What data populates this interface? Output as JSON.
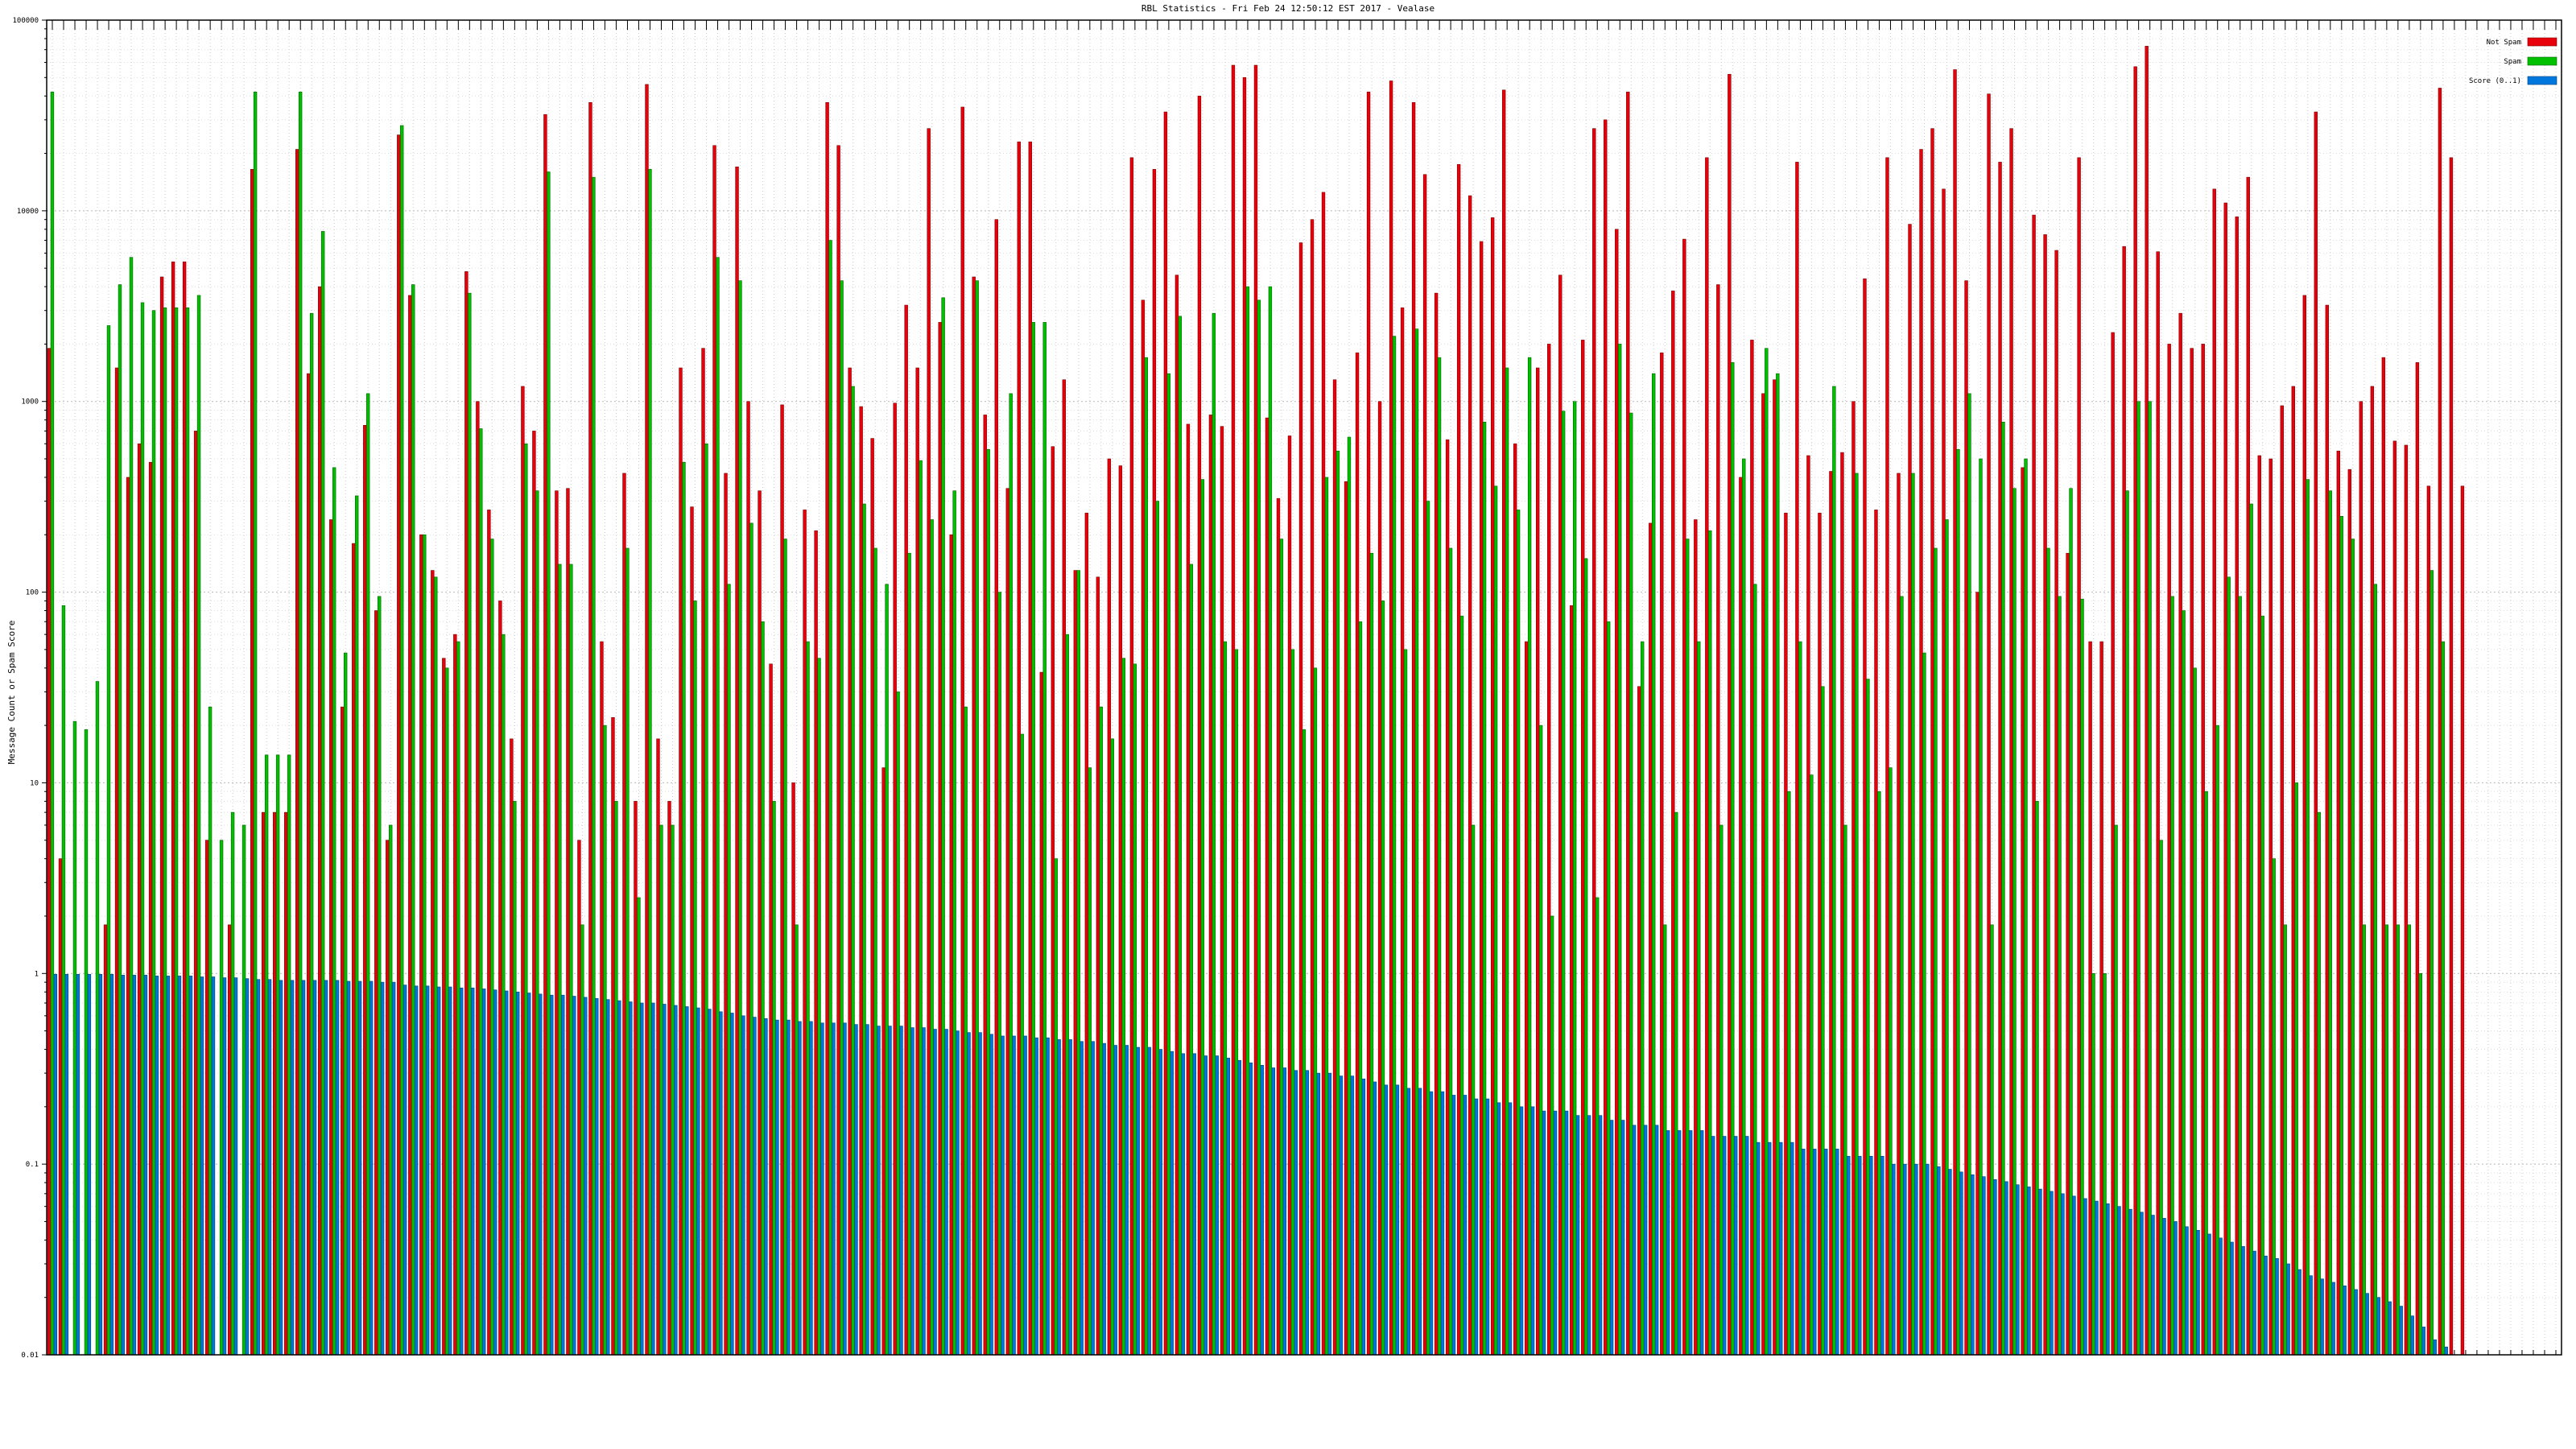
{
  "chart_data": {
    "type": "bar",
    "title": "RBL Statistics - Fri Feb 24 12:50:12 EST 2017 - Vealase",
    "xlabel": "",
    "ylabel": "Message Count or Spam Score",
    "yscale": "log",
    "ylim": [
      0.01,
      100000
    ],
    "y_ticks": [
      "0.01",
      "0.1",
      "1",
      "10",
      "100",
      "1000",
      "10000",
      "100000"
    ],
    "grid": true,
    "legend_position": "top-right",
    "categories_note": "x-axis tick labels are illegible in the screenshot",
    "colors": {
      "not_spam": "#e8000b",
      "spam": "#00c000",
      "score": "#0077dd"
    },
    "series": [
      {
        "name": "Not Spam",
        "values": [
          1900,
          4,
          null,
          null,
          null,
          1.8,
          1500,
          400,
          600,
          480,
          4500,
          5400,
          5400,
          700,
          5,
          null,
          1.8,
          null,
          16500,
          7,
          7,
          7,
          21000,
          1400,
          4000,
          240,
          25,
          180,
          750,
          80,
          5,
          25000,
          3600,
          200,
          130,
          45,
          60,
          4800,
          1000,
          270,
          90,
          17,
          1200,
          700,
          32000,
          340,
          350,
          5,
          37000,
          55,
          22,
          420,
          8,
          46000,
          17,
          8,
          1500,
          280,
          1900,
          22000,
          420,
          17000,
          1000,
          340,
          42,
          960,
          10,
          270,
          210,
          37000,
          22000,
          1500,
          940,
          640,
          12,
          980,
          3200,
          1500,
          27000,
          2600,
          200,
          35000,
          4500,
          850,
          9000,
          350,
          23000,
          23000,
          38,
          580,
          1300,
          130,
          260,
          120,
          500,
          460,
          19000,
          3400,
          16500,
          33000,
          4600,
          760,
          40000,
          850,
          740,
          58000,
          50000,
          58000,
          820,
          310,
          660,
          6800,
          9000,
          12500,
          1300,
          380,
          1800,
          42000,
          1000,
          48000,
          3100,
          37000,
          15500,
          3700,
          630,
          17500,
          12000,
          6900,
          9200,
          43000,
          600,
          55,
          1500,
          2000,
          4600,
          85,
          2100,
          27000,
          30000,
          8000,
          42000,
          32,
          230,
          1800,
          3800,
          7100,
          240,
          19000,
          4100,
          52000,
          400,
          2100,
          1100,
          1300,
          260,
          18000,
          520,
          260,
          430,
          540,
          1000,
          4400,
          270,
          19000,
          420,
          8500,
          21000,
          27000,
          13000,
          55000,
          4300,
          100,
          41000,
          18000,
          27000,
          450,
          9500,
          7500,
          6200,
          160,
          19000,
          55,
          55,
          2300,
          6500,
          57000,
          73000,
          6100,
          2000,
          2900,
          1900,
          2000,
          13000,
          11000,
          9300,
          15000,
          520,
          500,
          950,
          1200,
          3600,
          33000,
          3200,
          550,
          440,
          1000,
          1200,
          1700,
          620,
          590,
          1600,
          360,
          44000,
          19000,
          360
        ]
      },
      {
        "name": "Spam",
        "values": [
          42000,
          85,
          21,
          19,
          34,
          2500,
          4100,
          5700,
          3300,
          3000,
          3100,
          3100,
          3100,
          3600,
          25,
          5,
          7,
          6,
          42000,
          14,
          14,
          14,
          42000,
          2900,
          7800,
          450,
          48,
          320,
          1100,
          95,
          6,
          28000,
          4100,
          200,
          120,
          40,
          55,
          3700,
          720,
          190,
          60,
          8,
          600,
          340,
          16000,
          140,
          140,
          1.8,
          15000,
          20,
          8,
          170,
          2.5,
          16500,
          6,
          6,
          480,
          90,
          600,
          5700,
          110,
          4300,
          230,
          70,
          8,
          190,
          1.8,
          55,
          45,
          7000,
          4300,
          1200,
          290,
          170,
          110,
          30,
          160,
          490,
          240,
          3500,
          340,
          25,
          4300,
          560,
          100,
          1100,
          18,
          2600,
          2600,
          4,
          60,
          130,
          12,
          25,
          17,
          45,
          42,
          1700,
          300,
          1400,
          2800,
          140,
          390,
          2900,
          55,
          50,
          4000,
          3400,
          4000,
          190,
          50,
          19,
          40,
          400,
          550,
          650,
          70,
          160,
          90,
          2200,
          50,
          2400,
          300,
          1700,
          170,
          75,
          6,
          780,
          360,
          1500,
          270,
          1700,
          20,
          2,
          890,
          1000,
          150,
          2.5,
          70,
          2000,
          870,
          55,
          1400,
          1.8,
          7,
          190,
          55,
          210,
          6,
          1600,
          500,
          110,
          1900,
          1400,
          9,
          55,
          11,
          32,
          1200,
          6,
          420,
          35,
          9,
          12,
          95,
          420,
          48,
          170,
          240,
          560,
          1100,
          500,
          1.8,
          780,
          350,
          500,
          8,
          170,
          95,
          350,
          92,
          1,
          1,
          6,
          340,
          1000,
          1000,
          5,
          95,
          80,
          40,
          9,
          20,
          120,
          95,
          290,
          75,
          4,
          1.8,
          10,
          390,
          7,
          340,
          250,
          190,
          1.8,
          110,
          1.8,
          1.8,
          1.8,
          1,
          130,
          55
        ]
      },
      {
        "name": "Score (0..1)",
        "values": [
          0.99,
          0.99,
          0.99,
          0.99,
          0.99,
          0.99,
          0.98,
          0.98,
          0.98,
          0.97,
          0.97,
          0.97,
          0.97,
          0.96,
          0.96,
          0.95,
          0.95,
          0.94,
          0.93,
          0.93,
          0.92,
          0.92,
          0.92,
          0.92,
          0.92,
          0.92,
          0.91,
          0.91,
          0.91,
          0.9,
          0.9,
          0.87,
          0.86,
          0.86,
          0.85,
          0.85,
          0.84,
          0.84,
          0.83,
          0.82,
          0.81,
          0.8,
          0.79,
          0.78,
          0.77,
          0.77,
          0.76,
          0.75,
          0.74,
          0.73,
          0.72,
          0.71,
          0.7,
          0.7,
          0.69,
          0.68,
          0.67,
          0.66,
          0.65,
          0.63,
          0.62,
          0.6,
          0.59,
          0.58,
          0.57,
          0.57,
          0.56,
          0.56,
          0.55,
          0.55,
          0.55,
          0.54,
          0.54,
          0.53,
          0.53,
          0.53,
          0.52,
          0.52,
          0.51,
          0.51,
          0.5,
          0.49,
          0.49,
          0.48,
          0.47,
          0.47,
          0.47,
          0.46,
          0.46,
          0.45,
          0.45,
          0.44,
          0.44,
          0.43,
          0.42,
          0.42,
          0.41,
          0.41,
          0.4,
          0.39,
          0.38,
          0.38,
          0.37,
          0.37,
          0.36,
          0.35,
          0.34,
          0.33,
          0.32,
          0.32,
          0.31,
          0.31,
          0.3,
          0.3,
          0.29,
          0.29,
          0.28,
          0.27,
          0.26,
          0.26,
          0.25,
          0.25,
          0.24,
          0.24,
          0.23,
          0.23,
          0.22,
          0.22,
          0.21,
          0.21,
          0.2,
          0.2,
          0.19,
          0.19,
          0.19,
          0.18,
          0.18,
          0.18,
          0.17,
          0.17,
          0.16,
          0.16,
          0.16,
          0.15,
          0.15,
          0.15,
          0.15,
          0.14,
          0.14,
          0.14,
          0.14,
          0.13,
          0.13,
          0.13,
          0.13,
          0.12,
          0.12,
          0.12,
          0.12,
          0.11,
          0.11,
          0.11,
          0.11,
          0.1,
          0.1,
          0.1,
          0.1,
          0.097,
          0.094,
          0.091,
          0.088,
          0.086,
          0.083,
          0.081,
          0.078,
          0.076,
          0.074,
          0.072,
          0.07,
          0.068,
          0.066,
          0.064,
          0.062,
          0.06,
          0.058,
          0.056,
          0.054,
          0.052,
          0.05,
          0.047,
          0.045,
          0.043,
          0.041,
          0.039,
          0.037,
          0.035,
          0.033,
          0.032,
          0.03,
          0.028,
          0.026,
          0.025,
          0.024,
          0.023,
          0.022,
          0.021,
          0.02,
          0.019,
          0.018,
          0.016,
          0.014,
          0.012,
          0.011,
          0.01,
          0.01,
          0.01,
          0.01,
          0.01,
          0.01,
          0.01,
          0.01,
          0.01,
          0.01
        ]
      }
    ]
  }
}
